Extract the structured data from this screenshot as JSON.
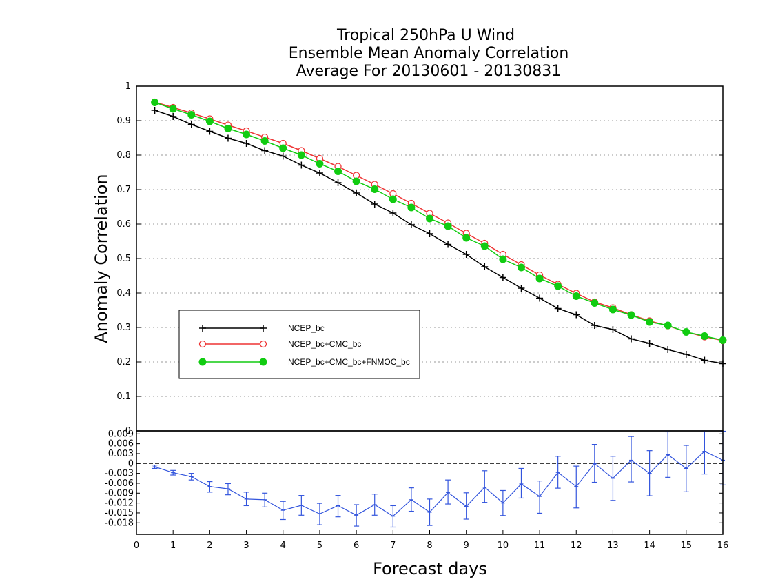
{
  "chart_data": [
    {
      "type": "line",
      "title_lines": [
        "Tropical 250hPa U Wind",
        "Ensemble Mean Anomaly Correlation",
        "Average For 20130601 - 20130831"
      ],
      "ylabel": "Anomaly Correlation",
      "xlim": [
        0,
        16
      ],
      "ylim": [
        0,
        1
      ],
      "yticks": [
        "0",
        "0.1",
        "0.2",
        "0.3",
        "0.4",
        "0.5",
        "0.6",
        "0.7",
        "0.8",
        "0.9",
        "1"
      ],
      "grid": true,
      "legend_position": "lower-left",
      "x": [
        0.5,
        1,
        1.5,
        2,
        2.5,
        3,
        3.5,
        4,
        4.5,
        5,
        5.5,
        6,
        6.5,
        7,
        7.5,
        8,
        8.5,
        9,
        9.5,
        10,
        10.5,
        11,
        11.5,
        12,
        12.5,
        13,
        13.5,
        14,
        14.5,
        15,
        15.5,
        16
      ],
      "series": [
        {
          "name": "NCEP_bc",
          "color": "#000000",
          "marker": "plus",
          "values": [
            0.93,
            0.912,
            0.889,
            0.869,
            0.849,
            0.834,
            0.813,
            0.797,
            0.771,
            0.748,
            0.72,
            0.69,
            0.658,
            0.632,
            0.598,
            0.572,
            0.541,
            0.512,
            0.476,
            0.445,
            0.414,
            0.385,
            0.355,
            0.337,
            0.306,
            0.294,
            0.267,
            0.254,
            0.236,
            0.222,
            0.205,
            0.195
          ]
        },
        {
          "name": "NCEP_bc+CMC_bc",
          "color": "#ee3333",
          "marker": "open-circle",
          "values": [
            0.954,
            0.938,
            0.922,
            0.905,
            0.887,
            0.87,
            0.852,
            0.834,
            0.813,
            0.79,
            0.767,
            0.741,
            0.715,
            0.688,
            0.66,
            0.631,
            0.603,
            0.573,
            0.544,
            0.512,
            0.482,
            0.452,
            0.425,
            0.399,
            0.374,
            0.357,
            0.337,
            0.319,
            0.305,
            0.287,
            0.273,
            0.262
          ]
        },
        {
          "name": "NCEP_bc+CMC_bc+FNMOC_bc",
          "color": "#11cc11",
          "marker": "filled-circle",
          "values": [
            0.953,
            0.934,
            0.917,
            0.898,
            0.877,
            0.86,
            0.841,
            0.82,
            0.8,
            0.775,
            0.753,
            0.724,
            0.701,
            0.672,
            0.648,
            0.616,
            0.594,
            0.56,
            0.536,
            0.498,
            0.474,
            0.442,
            0.42,
            0.391,
            0.371,
            0.352,
            0.336,
            0.316,
            0.306,
            0.287,
            0.275,
            0.263
          ]
        }
      ]
    },
    {
      "type": "line",
      "xlabel": "Forecast days",
      "xlim": [
        0,
        16
      ],
      "ylim": [
        -0.0215,
        0.0099
      ],
      "xticks": [
        "0",
        "1",
        "2",
        "3",
        "4",
        "5",
        "6",
        "7",
        "8",
        "9",
        "10",
        "11",
        "12",
        "13",
        "14",
        "15",
        "16"
      ],
      "yticks": [
        "0.009",
        "0.006",
        "0.003",
        "0",
        "-0.003",
        "-0.006",
        "-0.009",
        "-0.012",
        "-0.015",
        "-0.018"
      ],
      "series": [
        {
          "color": "#3355dd",
          "error_bars": true,
          "values": [
            -0.001,
            -0.0028,
            -0.004,
            -0.007,
            -0.0077,
            -0.0108,
            -0.011,
            -0.0142,
            -0.0127,
            -0.0153,
            -0.0128,
            -0.0157,
            -0.0125,
            -0.016,
            -0.011,
            -0.0148,
            -0.0088,
            -0.013,
            -0.0072,
            -0.012,
            -0.0062,
            -0.01,
            -0.0027,
            -0.007,
            0.0,
            -0.0045,
            0.001,
            -0.003,
            0.0027,
            -0.0015,
            0.0037,
            0.001
          ],
          "lower": [
            -0.0015,
            -0.0035,
            -0.005,
            -0.0087,
            -0.0095,
            -0.0128,
            -0.0132,
            -0.017,
            -0.0157,
            -0.0186,
            -0.0162,
            -0.019,
            -0.0157,
            -0.0193,
            -0.0145,
            -0.0188,
            -0.0123,
            -0.0169,
            -0.0118,
            -0.0158,
            -0.0105,
            -0.0151,
            -0.0075,
            -0.0135,
            -0.0057,
            -0.0112,
            -0.0056,
            -0.0098,
            -0.0042,
            -0.0086,
            -0.0032,
            -0.0065
          ],
          "upper": [
            -0.0005,
            -0.0021,
            -0.003,
            -0.0055,
            -0.0061,
            -0.0087,
            -0.009,
            -0.0115,
            -0.0097,
            -0.0121,
            -0.0097,
            -0.0125,
            -0.0093,
            -0.0128,
            -0.0074,
            -0.0108,
            -0.005,
            -0.0089,
            -0.0022,
            -0.0082,
            -0.0015,
            -0.0053,
            0.0022,
            -0.0008,
            0.0058,
            0.0022,
            0.0082,
            0.0039,
            0.0096,
            0.0055,
            0.0105,
            0.0098
          ]
        }
      ]
    }
  ]
}
